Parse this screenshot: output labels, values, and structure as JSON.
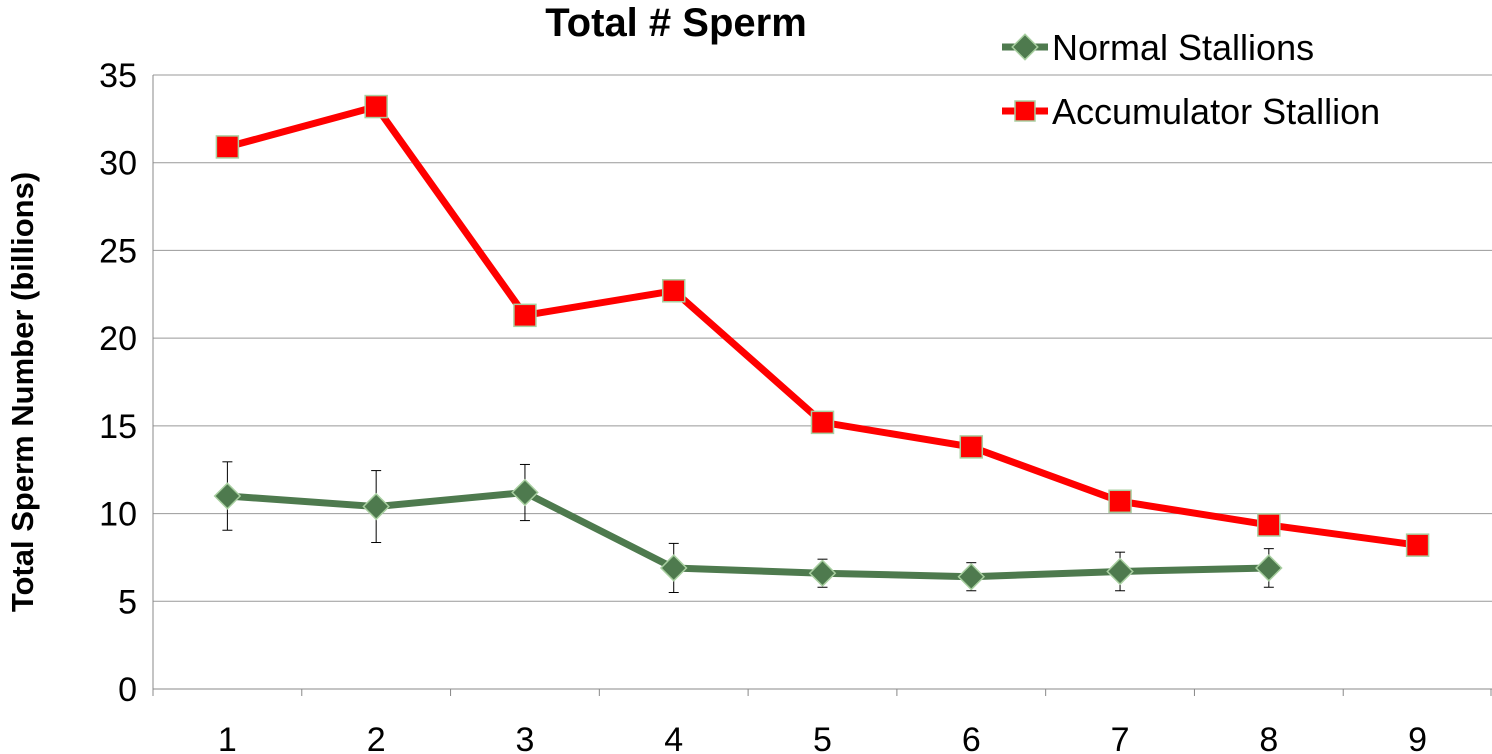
{
  "chart_data": {
    "type": "line",
    "title": "Total # Sperm",
    "xlabel": "",
    "ylabel": "Total Sperm Number (billions)",
    "categories": [
      "1",
      "2",
      "3",
      "4",
      "5",
      "6",
      "7",
      "8",
      "9"
    ],
    "ylim": [
      0,
      35
    ],
    "yticks": [
      0,
      5,
      10,
      15,
      20,
      25,
      30,
      35
    ],
    "grid": true,
    "legend_position": "top-right",
    "series": [
      {
        "name": "Normal Stallions",
        "color": "#4e7a4e",
        "marker": "diamond",
        "values": [
          11.0,
          10.4,
          11.2,
          6.9,
          6.6,
          6.4,
          6.7,
          6.9,
          null
        ],
        "error": [
          1.95,
          2.05,
          1.6,
          1.4,
          0.8,
          0.8,
          1.1,
          1.1,
          null
        ]
      },
      {
        "name": "Accumulator Stallion",
        "color": "#ff0000",
        "marker": "square",
        "values": [
          30.9,
          33.2,
          21.3,
          22.7,
          15.2,
          13.8,
          10.7,
          9.35,
          8.2
        ]
      }
    ]
  }
}
